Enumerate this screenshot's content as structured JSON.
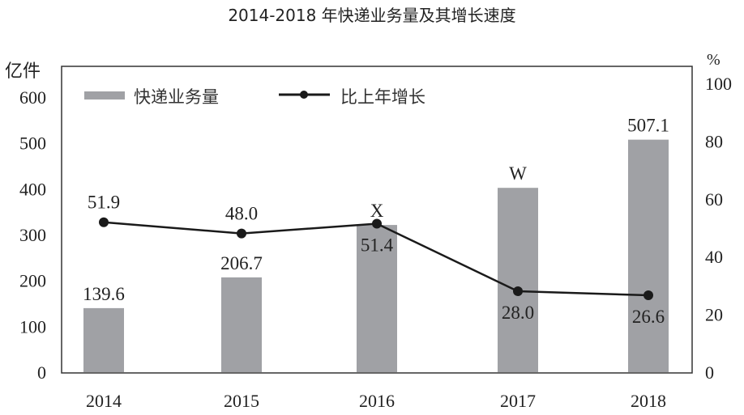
{
  "chart_data": {
    "type": "bar+line",
    "title": "2014-2018 年快递业务量及其增长速度",
    "categories": [
      "2014",
      "2015",
      "2016",
      "2017",
      "2018"
    ],
    "y_left": {
      "unit": "亿件",
      "range": [
        0,
        600
      ],
      "ticks": [
        0,
        100,
        200,
        300,
        400,
        500,
        600
      ]
    },
    "y_right": {
      "unit": "%",
      "range": [
        0,
        100
      ],
      "ticks": [
        0,
        20,
        40,
        60,
        80,
        100
      ]
    },
    "grid": false,
    "legend_position": "top-left",
    "series": [
      {
        "name": "快递业务量",
        "type": "bar",
        "axis": "left",
        "color": "#a0a1a5",
        "values": [
          139.6,
          206.7,
          321,
          402,
          507.1
        ],
        "labels": [
          "139.6",
          "206.7",
          "X",
          "W",
          "507.1"
        ]
      },
      {
        "name": "比上年增长",
        "type": "line",
        "axis": "right",
        "color": "#1a1a1a",
        "values": [
          51.9,
          48.0,
          51.4,
          28.0,
          26.6
        ],
        "labels": [
          "51.9",
          "48.0",
          "51.4",
          "28.0",
          "26.6"
        ]
      }
    ]
  }
}
